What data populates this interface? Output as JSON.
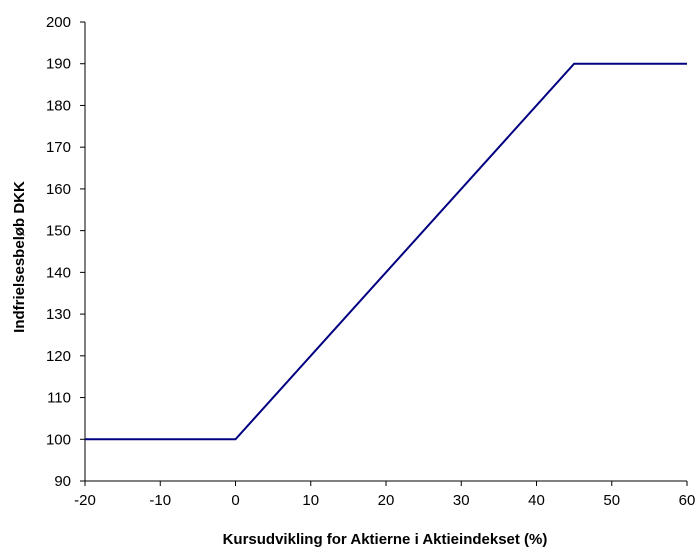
{
  "chart_data": {
    "type": "line",
    "title": "",
    "xlabel": "Kursudvikling for Aktierne i Aktieindekset (%)",
    "ylabel": "Indfrielsesbeløb DKK",
    "xlim": [
      -20,
      60
    ],
    "ylim": [
      90,
      200
    ],
    "x_ticks": [
      -20,
      -10,
      0,
      10,
      20,
      30,
      40,
      50,
      60
    ],
    "y_ticks": [
      90,
      100,
      110,
      120,
      130,
      140,
      150,
      160,
      170,
      180,
      190,
      200
    ],
    "grid": false,
    "legend": "none",
    "series": [
      {
        "color": "#000080",
        "x": [
          -20,
          0,
          45,
          60
        ],
        "y": [
          100,
          100,
          190,
          190
        ]
      }
    ]
  }
}
